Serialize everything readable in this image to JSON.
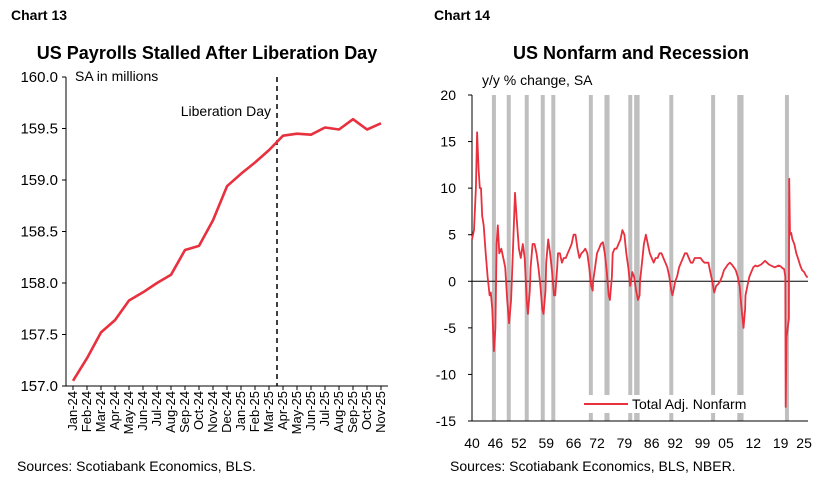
{
  "charts": [
    {
      "number": "Chart 13",
      "title": "US Payrolls Stalled After Liberation Day",
      "subtitle": "SA in millions",
      "source": "Sources: Scotiabank Economics, BLS.",
      "annotation": "Liberation Day"
    },
    {
      "number": "Chart 14",
      "title": "US Nonfarm and Recession",
      "subtitle": "y/y % change, SA",
      "source": "Sources: Scotiabank Economics, BLS, NBER."
    }
  ],
  "colors": {
    "line": "#e8303e",
    "recession": "#bfbfbf",
    "axis": "#000000"
  },
  "chart_data": [
    {
      "type": "line",
      "title": "US Payrolls Stalled After Liberation Day",
      "ylabel": "SA in millions",
      "ylim": [
        157.0,
        160.0
      ],
      "yticks": [
        "157.0",
        "157.5",
        "158.0",
        "158.5",
        "159.0",
        "159.5",
        "160.0"
      ],
      "categories": [
        "Jan-24",
        "Feb-24",
        "Mar-24",
        "Apr-24",
        "May-24",
        "Jun-24",
        "Jul-24",
        "Aug-24",
        "Sep-24",
        "Oct-24",
        "Nov-24",
        "Dec-24",
        "Jan-25",
        "Feb-25",
        "Mar-25",
        "Apr-25",
        "May-25",
        "Jun-25",
        "Jul-25",
        "Aug-25",
        "Sep-25",
        "Oct-25",
        "Nov-25"
      ],
      "series": [
        {
          "values": [
            157.05,
            157.27,
            157.52,
            157.64,
            157.83,
            157.91,
            158.0,
            158.08,
            158.32,
            158.36,
            158.61,
            158.94,
            159.06,
            159.17,
            159.29,
            159.43,
            159.45,
            159.44,
            159.51,
            159.49,
            159.59,
            159.49,
            159.55
          ]
        }
      ],
      "vline_category": "Apr-25",
      "vline_label": "Liberation Day",
      "grid": false
    },
    {
      "type": "line",
      "title": "US Nonfarm and Recession",
      "ylabel": "y/y % change, SA",
      "ylim": [
        -15,
        20
      ],
      "yticks": [
        "-15",
        "-10",
        "-5",
        "0",
        "5",
        "10",
        "15",
        "20"
      ],
      "xlim": [
        1940,
        2026
      ],
      "xticks": [
        "40",
        "46",
        "52",
        "59",
        "66",
        "72",
        "79",
        "86",
        "92",
        "99",
        "05",
        "12",
        "19",
        "25"
      ],
      "xtick_years": [
        1940,
        1946,
        1952,
        1959,
        1966,
        1972,
        1979,
        1986,
        1992,
        1999,
        2005,
        2012,
        2019,
        2025
      ],
      "recessions": [
        [
          1945.1,
          1945.8
        ],
        [
          1948.9,
          1949.8
        ],
        [
          1953.5,
          1954.4
        ],
        [
          1957.6,
          1958.3
        ],
        [
          1960.3,
          1961.1
        ],
        [
          1969.9,
          1970.9
        ],
        [
          1973.9,
          1975.2
        ],
        [
          1980.0,
          1980.5
        ],
        [
          1981.5,
          1982.9
        ],
        [
          1990.5,
          1991.2
        ],
        [
          2001.2,
          2001.9
        ],
        [
          2007.9,
          2009.5
        ],
        [
          2020.1,
          2020.4
        ]
      ],
      "series": [
        {
          "name": "Total Adj. Nonfarm",
          "points": [
            [
              1940,
              4.5
            ],
            [
              1940.5,
              5.5
            ],
            [
              1941,
              10
            ],
            [
              1941.3,
              16
            ],
            [
              1941.7,
              12
            ],
            [
              1942,
              10
            ],
            [
              1942.3,
              10
            ],
            [
              1942.6,
              7
            ],
            [
              1943,
              6
            ],
            [
              1943.5,
              3
            ],
            [
              1944,
              0.5
            ],
            [
              1944.5,
              -1.5
            ],
            [
              1944.8,
              -1.2
            ],
            [
              1945.2,
              -3
            ],
            [
              1945.6,
              -7.5
            ],
            [
              1946,
              -5
            ],
            [
              1946.3,
              4
            ],
            [
              1946.6,
              6
            ],
            [
              1947,
              3
            ],
            [
              1947.5,
              3.5
            ],
            [
              1948,
              2.5
            ],
            [
              1948.5,
              1.5
            ],
            [
              1949,
              -2
            ],
            [
              1949.5,
              -4.5
            ],
            [
              1950,
              -2
            ],
            [
              1950.5,
              3.5
            ],
            [
              1951,
              9.5
            ],
            [
              1951.4,
              7
            ],
            [
              1952,
              3.5
            ],
            [
              1952.5,
              2.5
            ],
            [
              1953,
              4
            ],
            [
              1953.5,
              2.5
            ],
            [
              1954,
              -2
            ],
            [
              1954.3,
              -3.5
            ],
            [
              1954.8,
              -1
            ],
            [
              1955,
              1.5
            ],
            [
              1955.5,
              4
            ],
            [
              1956,
              4
            ],
            [
              1956.5,
              3
            ],
            [
              1957,
              1.5
            ],
            [
              1957.5,
              -0.5
            ],
            [
              1958,
              -3
            ],
            [
              1958.3,
              -3.5
            ],
            [
              1958.8,
              -1
            ],
            [
              1959,
              2
            ],
            [
              1959.5,
              4.5
            ],
            [
              1960,
              3
            ],
            [
              1960.5,
              1
            ],
            [
              1961,
              -1.5
            ],
            [
              1961.3,
              -1.5
            ],
            [
              1961.8,
              1.5
            ],
            [
              1962,
              3
            ],
            [
              1962.5,
              3
            ],
            [
              1963,
              2
            ],
            [
              1963.5,
              2.5
            ],
            [
              1964,
              2.5
            ],
            [
              1964.5,
              3
            ],
            [
              1965,
              3.5
            ],
            [
              1965.5,
              4
            ],
            [
              1966,
              5
            ],
            [
              1966.5,
              5
            ],
            [
              1967,
              3.5
            ],
            [
              1967.5,
              2.5
            ],
            [
              1968,
              3
            ],
            [
              1968.5,
              3.2
            ],
            [
              1969,
              3.5
            ],
            [
              1969.5,
              3
            ],
            [
              1970,
              1.5
            ],
            [
              1970.5,
              -0.5
            ],
            [
              1970.9,
              -1
            ],
            [
              1971,
              0
            ],
            [
              1971.5,
              1.5
            ],
            [
              1972,
              3
            ],
            [
              1972.5,
              3.5
            ],
            [
              1973,
              4
            ],
            [
              1973.5,
              4.2
            ],
            [
              1974,
              3
            ],
            [
              1974.5,
              1
            ],
            [
              1975,
              -1.5
            ],
            [
              1975.3,
              -2
            ],
            [
              1975.8,
              0.5
            ],
            [
              1976,
              3
            ],
            [
              1976.5,
              3.5
            ],
            [
              1977,
              3.5
            ],
            [
              1977.5,
              4
            ],
            [
              1978,
              4.5
            ],
            [
              1978.5,
              5.5
            ],
            [
              1979,
              5
            ],
            [
              1979.5,
              3
            ],
            [
              1980,
              1.5
            ],
            [
              1980.5,
              -0.5
            ],
            [
              1980.9,
              0.5
            ],
            [
              1981,
              1
            ],
            [
              1981.5,
              0.5
            ],
            [
              1982,
              -1
            ],
            [
              1982.5,
              -2
            ],
            [
              1982.9,
              -1.5
            ],
            [
              1983,
              0
            ],
            [
              1983.5,
              2
            ],
            [
              1984,
              4
            ],
            [
              1984.5,
              5
            ],
            [
              1985,
              4
            ],
            [
              1985.5,
              3
            ],
            [
              1986,
              2.5
            ],
            [
              1986.5,
              2
            ],
            [
              1987,
              2.5
            ],
            [
              1987.5,
              2.5
            ],
            [
              1988,
              3
            ],
            [
              1988.5,
              3
            ],
            [
              1989,
              2.5
            ],
            [
              1989.5,
              2
            ],
            [
              1990,
              1.5
            ],
            [
              1990.5,
              0.5
            ],
            [
              1991,
              -1
            ],
            [
              1991.3,
              -1.5
            ],
            [
              1991.8,
              -0.5
            ],
            [
              1992,
              0
            ],
            [
              1992.5,
              0.5
            ],
            [
              1993,
              1.5
            ],
            [
              1993.5,
              2
            ],
            [
              1994,
              2.5
            ],
            [
              1994.5,
              3
            ],
            [
              1995,
              3
            ],
            [
              1995.5,
              2.5
            ],
            [
              1996,
              2
            ],
            [
              1996.5,
              2
            ],
            [
              1997,
              2.5
            ],
            [
              1997.5,
              2.5
            ],
            [
              1998,
              2.5
            ],
            [
              1998.5,
              2.5
            ],
            [
              1999,
              2.2
            ],
            [
              1999.5,
              2
            ],
            [
              2000,
              2
            ],
            [
              2000.5,
              2
            ],
            [
              2001,
              1
            ],
            [
              2001.5,
              0
            ],
            [
              2001.9,
              -1
            ],
            [
              2002,
              -1.2
            ],
            [
              2002.5,
              -0.5
            ],
            [
              2003,
              -0.3
            ],
            [
              2003.5,
              0
            ],
            [
              2004,
              0.5
            ],
            [
              2004.5,
              1.2
            ],
            [
              2005,
              1.5
            ],
            [
              2005.5,
              1.8
            ],
            [
              2006,
              2
            ],
            [
              2006.5,
              1.8
            ],
            [
              2007,
              1.5
            ],
            [
              2007.5,
              1.2
            ],
            [
              2008,
              0.5
            ],
            [
              2008.5,
              -0.5
            ],
            [
              2009,
              -3
            ],
            [
              2009.5,
              -5
            ],
            [
              2009.9,
              -3
            ],
            [
              2010,
              -1.5
            ],
            [
              2010.5,
              -0.5
            ],
            [
              2011,
              0.5
            ],
            [
              2011.5,
              1
            ],
            [
              2012,
              1.5
            ],
            [
              2012.5,
              1.7
            ],
            [
              2013,
              1.6
            ],
            [
              2013.5,
              1.7
            ],
            [
              2014,
              1.8
            ],
            [
              2014.5,
              2
            ],
            [
              2015,
              2.2
            ],
            [
              2015.5,
              2
            ],
            [
              2016,
              1.8
            ],
            [
              2016.5,
              1.7
            ],
            [
              2017,
              1.6
            ],
            [
              2017.5,
              1.5
            ],
            [
              2018,
              1.6
            ],
            [
              2018.5,
              1.7
            ],
            [
              2019,
              1.6
            ],
            [
              2019.5,
              1.4
            ],
            [
              2019.9,
              1.3
            ],
            [
              2020.2,
              0.5
            ],
            [
              2020.3,
              -13.5
            ],
            [
              2020.5,
              -6
            ],
            [
              2020.8,
              -5
            ],
            [
              2021.1,
              -4
            ],
            [
              2021.2,
              11
            ],
            [
              2021.4,
              5
            ],
            [
              2021.7,
              5.2
            ],
            [
              2022,
              4.5
            ],
            [
              2022.5,
              4
            ],
            [
              2023,
              3
            ],
            [
              2023.5,
              2.4
            ],
            [
              2024,
              1.7
            ],
            [
              2024.5,
              1.2
            ],
            [
              2025,
              1
            ],
            [
              2025.5,
              0.6
            ],
            [
              2025.9,
              0.4
            ]
          ]
        }
      ],
      "legend": "bottom-center",
      "grid": false
    }
  ]
}
